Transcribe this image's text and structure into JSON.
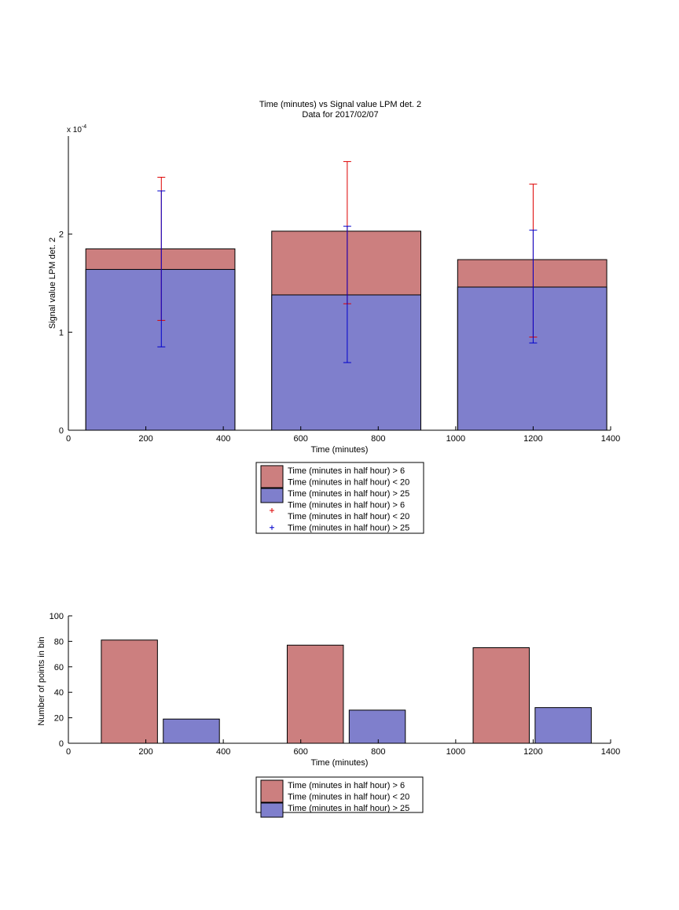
{
  "colors": {
    "red_fill": "#cc7f7f",
    "blue_fill": "#7f7fcc",
    "red_err": "#dd0000",
    "blue_err": "#0000cc"
  },
  "chart_data": [
    {
      "type": "bar",
      "stacked": true,
      "title": "Time (minutes) vs Signal value LPM det. 2",
      "subtitle": "Data for 2017/02/07",
      "xlabel": "Time (minutes)",
      "ylabel": "Signal value LPM det. 2",
      "scale_label": "x 10",
      "scale_exp": "-4",
      "xlim": [
        0,
        1400
      ],
      "ylim": [
        0,
        0.0003
      ],
      "xticks": [
        0,
        200,
        400,
        600,
        800,
        1000,
        1200,
        1400
      ],
      "yticks": [
        0,
        0.0001,
        0.0002
      ],
      "ytick_labels": [
        "0",
        "1",
        "2"
      ],
      "bars": [
        {
          "x_start": 45,
          "x_end": 430,
          "center": 240
        },
        {
          "x_start": 525,
          "x_end": 910,
          "center": 720
        },
        {
          "x_start": 1005,
          "x_end": 1390,
          "center": 1200
        }
      ],
      "series": [
        {
          "name": "Time (minutes in half hour) > 6\nTime (minutes in half hour) < 20",
          "color_key": "red_fill",
          "values": [
            0.000185,
            0.000203,
            0.000174
          ]
        },
        {
          "name": "Time (minutes in half hour) > 25",
          "color_key": "blue_fill",
          "values": [
            0.000164,
            0.000138,
            0.000146
          ]
        }
      ],
      "errorbars": [
        {
          "name": "Time (minutes in half hour) > 6\nTime (minutes in half hour) < 20",
          "color_key": "red_err",
          "points": [
            {
              "x": 240,
              "low": 0.000112,
              "high": 0.000258
            },
            {
              "x": 720,
              "low": 0.000129,
              "high": 0.000274
            },
            {
              "x": 1200,
              "low": 9.5e-05,
              "high": 0.000251
            }
          ]
        },
        {
          "name": "Time (minutes in half hour) > 25",
          "color_key": "blue_err",
          "points": [
            {
              "x": 240,
              "low": 8.5e-05,
              "high": 0.000244
            },
            {
              "x": 720,
              "low": 6.9e-05,
              "high": 0.000208
            },
            {
              "x": 1200,
              "low": 8.9e-05,
              "high": 0.000204
            }
          ]
        }
      ],
      "legend": [
        {
          "kind": "patch",
          "color_key": "red_fill",
          "lines": [
            "Time (minutes in half hour) > 6",
            "Time (minutes in half hour) < 20"
          ]
        },
        {
          "kind": "patch",
          "color_key": "blue_fill",
          "lines": [
            "Time (minutes in half hour) > 25"
          ]
        },
        {
          "kind": "marker",
          "color_key": "red_err",
          "lines": [
            "Time (minutes in half hour) > 6",
            "Time (minutes in half hour) < 20"
          ]
        },
        {
          "kind": "marker",
          "color_key": "blue_err",
          "lines": [
            "Time (minutes in half hour) > 25"
          ]
        }
      ],
      "legend_placement": "below"
    },
    {
      "type": "bar",
      "stacked": false,
      "title": "",
      "xlabel": "Time (minutes)",
      "ylabel": "Number of points in bin",
      "xlim": [
        0,
        1400
      ],
      "ylim": [
        0,
        100
      ],
      "xticks": [
        0,
        200,
        400,
        600,
        800,
        1000,
        1200,
        1400
      ],
      "yticks": [
        0,
        20,
        40,
        60,
        80,
        100
      ],
      "series": [
        {
          "name": "Time (minutes in half hour) > 6\nTime (minutes in half hour) < 20",
          "color_key": "red_fill",
          "bars": [
            {
              "x_start": 85,
              "x_end": 230,
              "value": 81
            },
            {
              "x_start": 565,
              "x_end": 710,
              "value": 77
            },
            {
              "x_start": 1045,
              "x_end": 1190,
              "value": 75
            }
          ]
        },
        {
          "name": "Time (minutes in half hour) > 25",
          "color_key": "blue_fill",
          "bars": [
            {
              "x_start": 245,
              "x_end": 390,
              "value": 19
            },
            {
              "x_start": 725,
              "x_end": 870,
              "value": 26
            },
            {
              "x_start": 1205,
              "x_end": 1350,
              "value": 28
            }
          ]
        }
      ],
      "legend": [
        {
          "kind": "patch",
          "color_key": "red_fill",
          "lines": [
            "Time (minutes in half hour) > 6",
            "Time (minutes in half hour) < 20"
          ]
        },
        {
          "kind": "patch",
          "color_key": "blue_fill",
          "lines": [
            "Time (minutes in half hour) > 25"
          ]
        }
      ],
      "legend_placement": "below"
    }
  ]
}
